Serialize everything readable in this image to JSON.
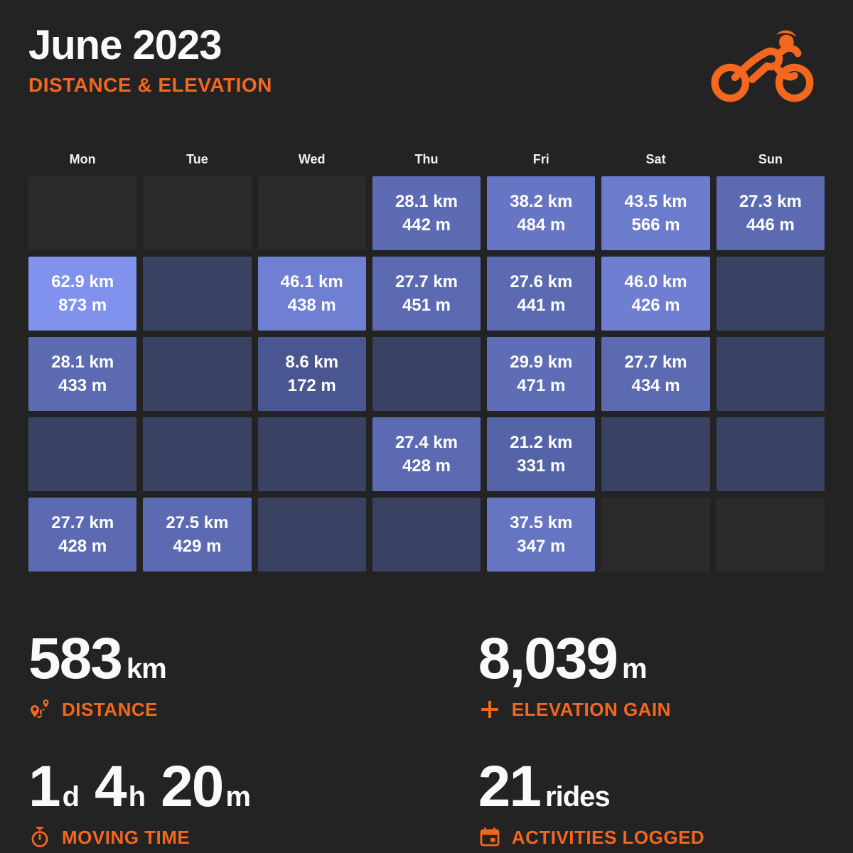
{
  "header": {
    "title": "June 2023",
    "subtitle": "DISTANCE & ELEVATION"
  },
  "colors": {
    "background": "#232323",
    "accent": "#f4671e",
    "text_primary": "#fafafa",
    "cell_out_of_month": "#2b2b2b",
    "cell_rest_day": "#3a4263",
    "cell_ride_min": "#485590",
    "cell_ride_max": "#8091ee"
  },
  "chart_data": {
    "type": "heatmap",
    "title": "June 2023",
    "subtitle": "Distance & Elevation",
    "columns": [
      "Mon",
      "Tue",
      "Wed",
      "Thu",
      "Fri",
      "Sat",
      "Sun"
    ],
    "cell_units": {
      "distance": "km",
      "elevation": "m"
    },
    "color_scale": {
      "min_km": 8,
      "max_km": 63,
      "note": "lighter blue = longer ride; 'rest' = in-month day with no ride; 'out' = day outside June"
    },
    "weeks": [
      [
        "out",
        "out",
        "out",
        {
          "km": 28.1,
          "m": 442
        },
        {
          "km": 38.2,
          "m": 484
        },
        {
          "km": 43.5,
          "m": 566
        },
        {
          "km": 27.3,
          "m": 446
        }
      ],
      [
        {
          "km": 62.9,
          "m": 873
        },
        "rest",
        {
          "km": 46.1,
          "m": 438
        },
        {
          "km": 27.7,
          "m": 451
        },
        {
          "km": 27.6,
          "m": 441
        },
        {
          "km": 46.0,
          "m": 426
        },
        "rest"
      ],
      [
        {
          "km": 28.1,
          "m": 433
        },
        "rest",
        {
          "km": 8.6,
          "m": 172
        },
        "rest",
        {
          "km": 29.9,
          "m": 471
        },
        {
          "km": 27.7,
          "m": 434
        },
        "rest"
      ],
      [
        "rest",
        "rest",
        "rest",
        {
          "km": 27.4,
          "m": 428
        },
        {
          "km": 21.2,
          "m": 331
        },
        "rest",
        "rest"
      ],
      [
        {
          "km": 27.7,
          "m": 428
        },
        {
          "km": 27.5,
          "m": 429
        },
        "rest",
        "rest",
        {
          "km": 37.5,
          "m": 347
        },
        "out",
        "out"
      ]
    ],
    "totals": {
      "distance": "583 km",
      "elevation_gain": "8,039 m",
      "moving_time": "1d 4h 20m",
      "rides": "21"
    }
  },
  "stats": {
    "distance": {
      "value": "583",
      "unit": "km",
      "label": "DISTANCE",
      "icon": "route-icon"
    },
    "elevation": {
      "value": "8,039",
      "unit": "m",
      "label": "ELEVATION GAIN",
      "icon": "plus-icon"
    },
    "moving_time": {
      "v1": "1",
      "u1": "d",
      "v2": "4",
      "u2": "h",
      "v3": "20",
      "u3": "m",
      "label": "MOVING TIME",
      "icon": "stopwatch-icon"
    },
    "rides": {
      "value": "21",
      "unit": "rides",
      "label": "ACTIVITIES LOGGED",
      "icon": "calendar-icon"
    }
  }
}
